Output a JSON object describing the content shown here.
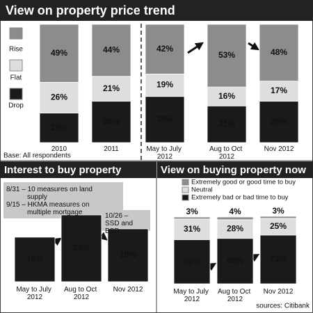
{
  "chart_data": [
    {
      "type": "bar",
      "stacked": true,
      "title": "View on property price trend",
      "note": "Base: All respondents",
      "categories": [
        "2010",
        "2011",
        "May to July 2012",
        "Aug to Oct 2012",
        "Nov 2012"
      ],
      "series": [
        {
          "name": "Drop",
          "color": "#1a1a1a",
          "values": [
            25,
            35,
            39,
            31,
            35
          ],
          "value_labels": [
            "25%",
            "35%",
            "39%",
            "31%",
            "35%"
          ]
        },
        {
          "name": "Flat",
          "color": "#dedede",
          "values": [
            26,
            21,
            19,
            16,
            17
          ],
          "value_labels": [
            "26%",
            "21%",
            "19%",
            "16%",
            "17%"
          ]
        },
        {
          "name": "Rise",
          "color": "#8c8c8c",
          "values": [
            49,
            44,
            42,
            53,
            48
          ],
          "value_labels": [
            "49%",
            "44%",
            "42%",
            "53%",
            "48%"
          ]
        }
      ]
    },
    {
      "type": "bar",
      "title": "Interest to buy property",
      "categories": [
        "May to July 2012",
        "Aug to Oct 2012",
        "Nov 2012"
      ],
      "values": [
        16,
        24,
        19
      ],
      "value_labels": [
        "16%",
        "24%",
        "19%"
      ],
      "color": "#1a1a1a",
      "annotations": [
        "8/31 – 10 measures on land supply",
        "9/15 – HKMA measures on multiple mortgage",
        "10/26 – SSD and BSD"
      ]
    },
    {
      "type": "bar",
      "stacked": true,
      "title": "View on buying property now",
      "source": "sources: Citibank",
      "categories": [
        "May to July 2012",
        "Aug to Oct 2012",
        "Nov 2012"
      ],
      "series": [
        {
          "name": "Extremely bad or bad time to buy",
          "color": "#1a1a1a",
          "values": [
            66,
            68,
            73
          ],
          "value_labels": [
            "66%",
            "68%",
            "73%"
          ]
        },
        {
          "name": "Neutral",
          "color": "#dedede",
          "values": [
            31,
            28,
            25
          ],
          "value_labels": [
            "31%",
            "28%",
            "25%"
          ]
        },
        {
          "name": "Extremely good or good time to buy",
          "color": "#8c8c8c",
          "values": [
            3,
            4,
            3
          ],
          "value_labels": [
            "3%",
            "4%",
            "3%"
          ]
        }
      ]
    }
  ]
}
